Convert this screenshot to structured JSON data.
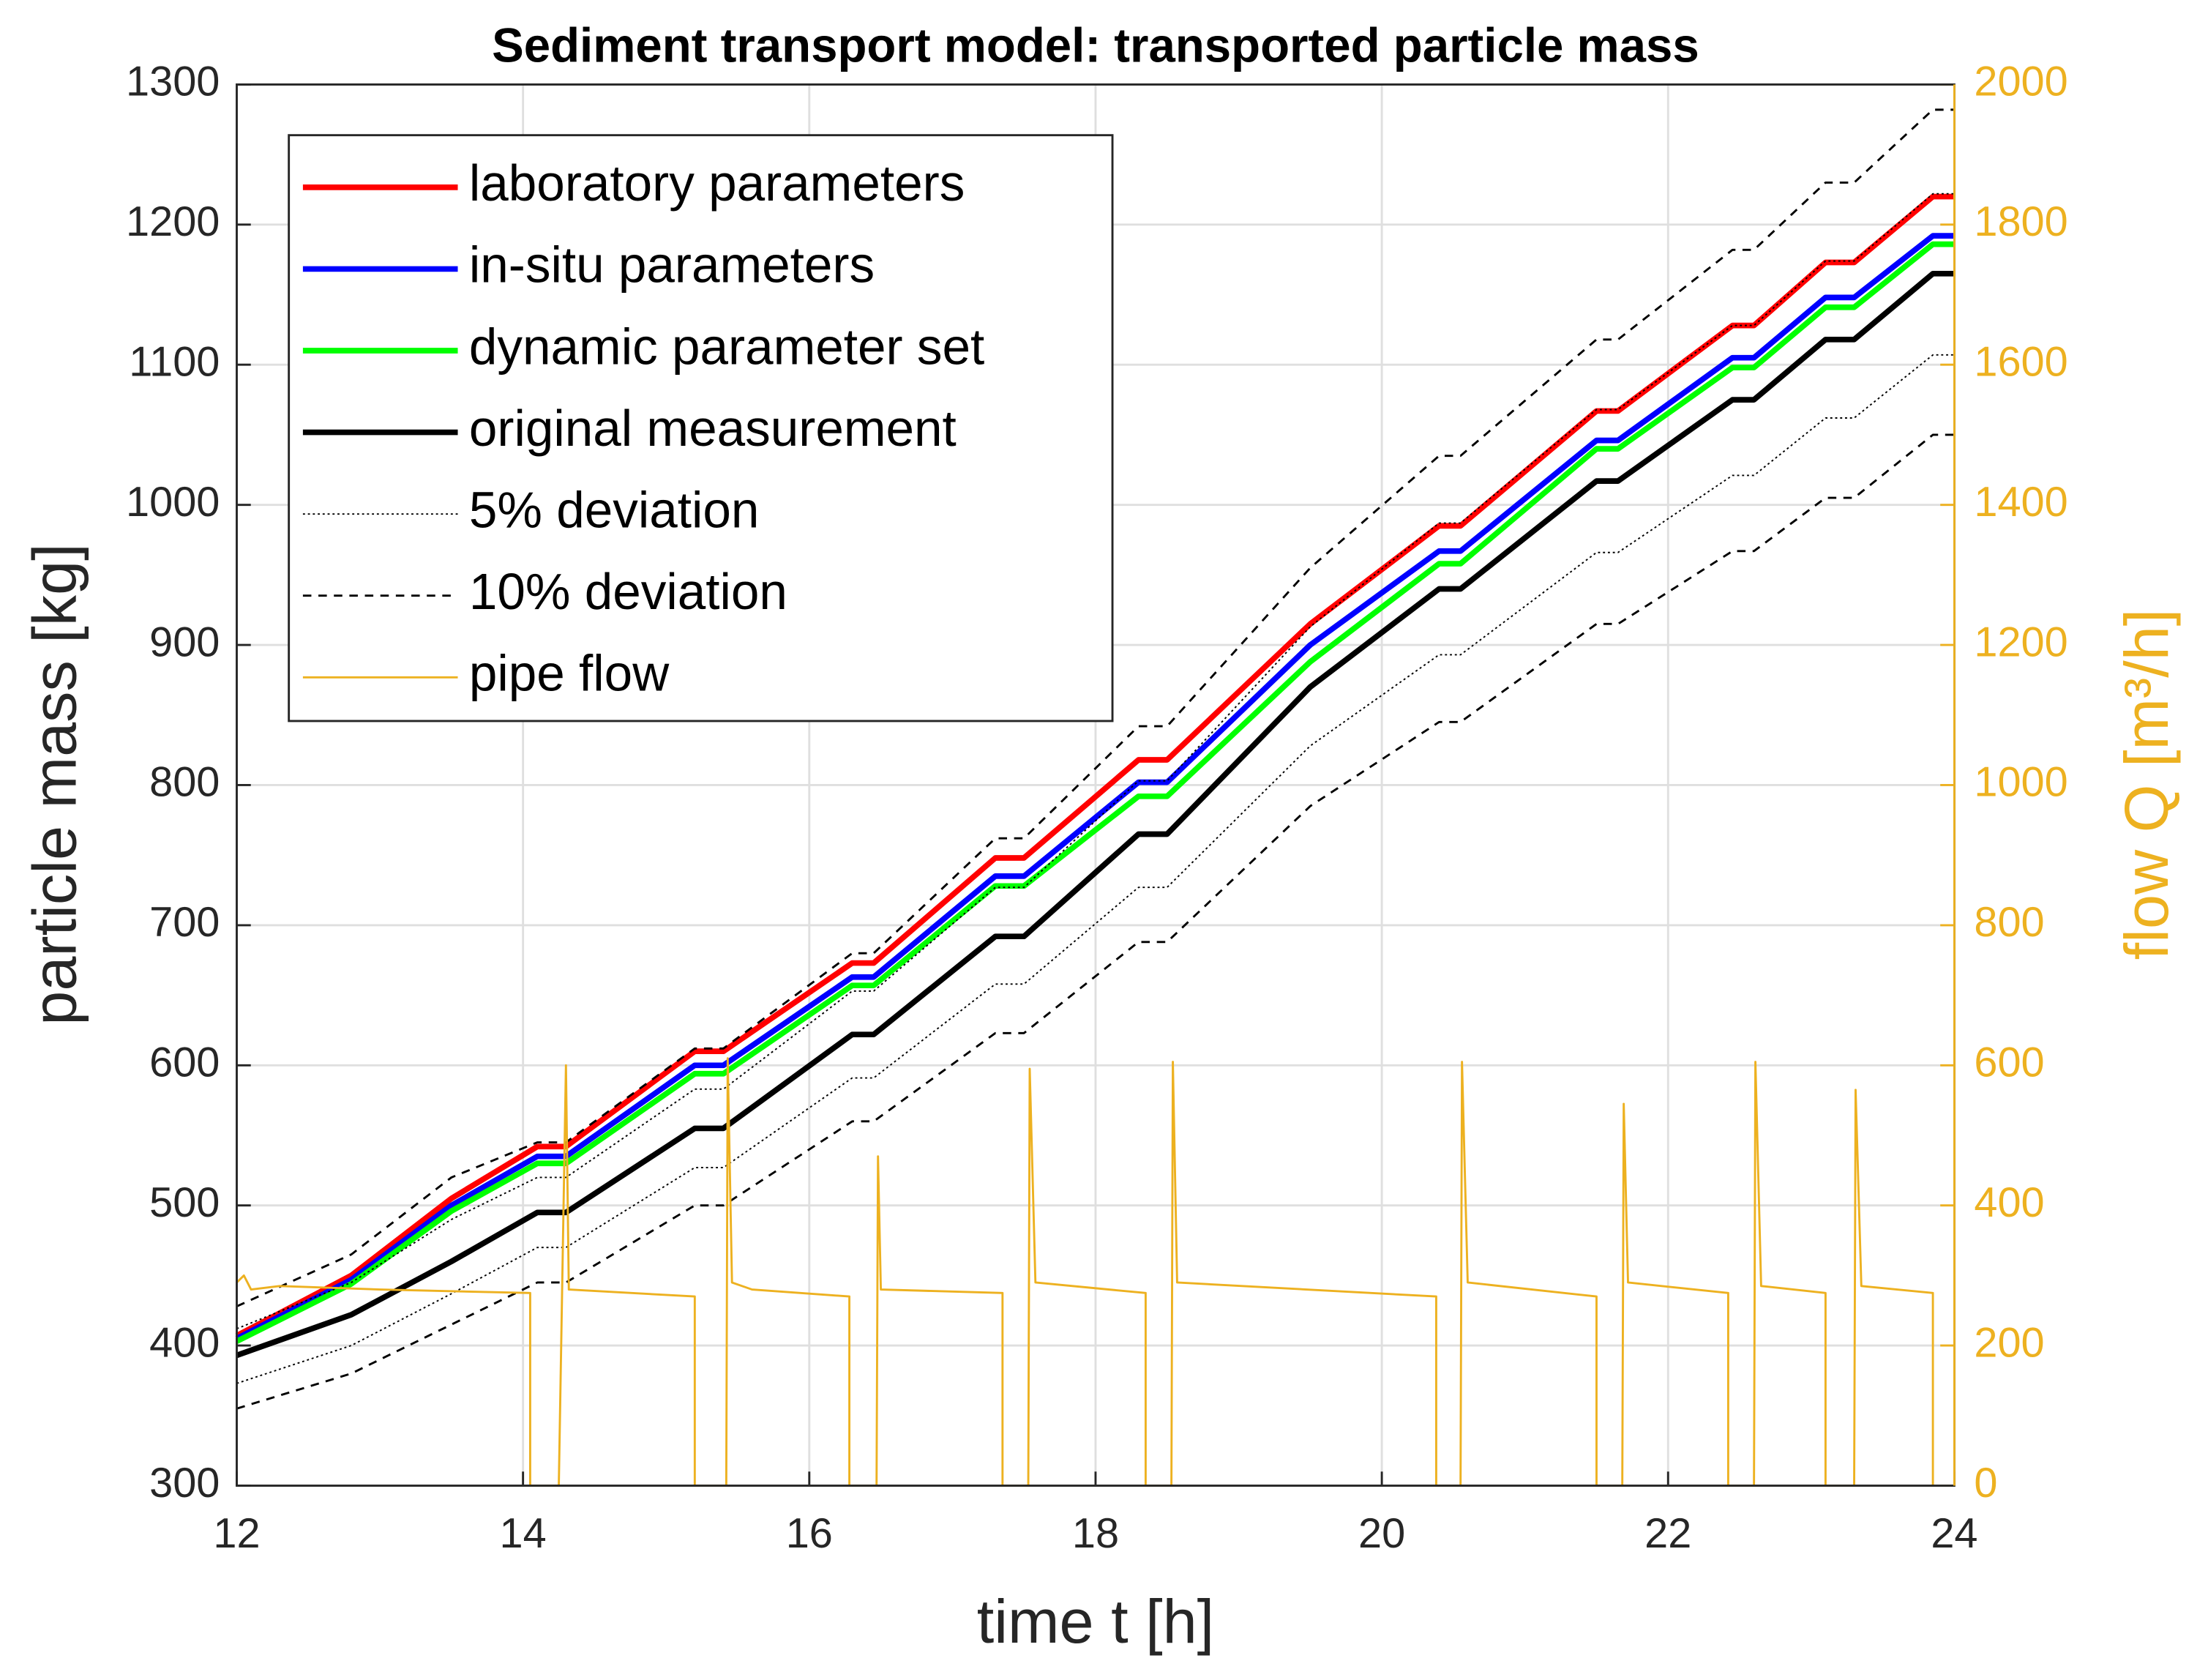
{
  "chart_data": {
    "type": "line",
    "title": "Sediment transport model: transported particle mass",
    "xlabel": "time t [h]",
    "ylabel": "particle mass [kg]",
    "y2label": "flow Q [m³/h]",
    "xlim": [
      12,
      24
    ],
    "xticks": [
      12,
      14,
      16,
      18,
      20,
      22,
      24
    ],
    "ylim": [
      300,
      1300
    ],
    "yticks": [
      300,
      400,
      500,
      600,
      700,
      800,
      900,
      1000,
      1100,
      1200,
      1300
    ],
    "y2lim": [
      0,
      2000
    ],
    "y2ticks": [
      0,
      200,
      400,
      600,
      800,
      1000,
      1200,
      1400,
      1600,
      1800,
      2000
    ],
    "y2color": "#edb120",
    "grid": true,
    "legend": "upper left",
    "x": [
      12,
      12.8,
      13.5,
      14.1,
      14.3,
      15.2,
      15.4,
      16.3,
      16.45,
      17.3,
      17.5,
      18.3,
      18.5,
      19.5,
      20.4,
      20.55,
      21.5,
      21.65,
      22.45,
      22.6,
      23.1,
      23.3,
      23.85,
      24
    ],
    "series": [
      {
        "name": "laboratory parameters",
        "color": "#ff0000",
        "style": "solid",
        "width": 4,
        "values": [
          407,
          450,
          505,
          542,
          542,
          610,
          610,
          673,
          673,
          748,
          748,
          818,
          818,
          915,
          985,
          985,
          1067,
          1067,
          1128,
          1128,
          1173,
          1173,
          1220,
          1220
        ]
      },
      {
        "name": "in-situ parameters",
        "color": "#0000ff",
        "style": "solid",
        "width": 4,
        "values": [
          405,
          447,
          500,
          535,
          535,
          600,
          600,
          663,
          663,
          735,
          735,
          802,
          802,
          900,
          967,
          967,
          1046,
          1046,
          1105,
          1105,
          1148,
          1148,
          1192,
          1192
        ]
      },
      {
        "name": "dynamic parameter set",
        "color": "#00ff00",
        "style": "solid",
        "width": 4,
        "values": [
          403,
          444,
          496,
          530,
          530,
          594,
          594,
          657,
          657,
          728,
          728,
          792,
          792,
          888,
          958,
          958,
          1040,
          1040,
          1098,
          1098,
          1141,
          1141,
          1186,
          1186
        ]
      },
      {
        "name": "original measurement",
        "color": "#000000",
        "style": "solid",
        "width": 4,
        "values": [
          393,
          422,
          460,
          495,
          495,
          555,
          555,
          622,
          622,
          692,
          692,
          765,
          765,
          870,
          940,
          940,
          1017,
          1017,
          1075,
          1075,
          1118,
          1118,
          1165,
          1165
        ]
      },
      {
        "name": "5% deviation",
        "color": "#000000",
        "style": "dotted",
        "width": 1,
        "upper": [
          412,
          445,
          490,
          520,
          520,
          583,
          583,
          653,
          653,
          727,
          727,
          803,
          803,
          913,
          987,
          987,
          1068,
          1068,
          1128,
          1128,
          1174,
          1174,
          1222,
          1222
        ],
        "lower": [
          373,
          400,
          437,
          470,
          470,
          527,
          527,
          591,
          591,
          658,
          658,
          727,
          727,
          828,
          893,
          893,
          966,
          966,
          1021,
          1021,
          1062,
          1062,
          1107,
          1107
        ]
      },
      {
        "name": "10% deviation",
        "color": "#000000",
        "style": "dashed",
        "width": 1.5,
        "upper": [
          428,
          465,
          520,
          545,
          545,
          612,
          612,
          680,
          680,
          762,
          762,
          842,
          842,
          955,
          1035,
          1035,
          1118,
          1118,
          1182,
          1182,
          1230,
          1230,
          1282,
          1282
        ],
        "lower": [
          355,
          380,
          415,
          445,
          445,
          500,
          500,
          560,
          560,
          623,
          623,
          688,
          688,
          785,
          845,
          845,
          915,
          915,
          967,
          967,
          1005,
          1005,
          1050,
          1050
        ]
      },
      {
        "name": "pipe flow",
        "color": "#edb120",
        "style": "solid",
        "width": 1.5,
        "axis": "y2",
        "x": [
          12,
          12.05,
          12.1,
          12.3,
          13,
          14.05,
          14.05,
          14.25,
          14.3,
          14.32,
          15.2,
          15.2,
          15.42,
          15.43,
          15.46,
          15.6,
          16.28,
          16.28,
          16.47,
          16.48,
          16.5,
          17.35,
          17.35,
          17.53,
          17.54,
          17.58,
          18.35,
          18.35,
          18.53,
          18.54,
          18.57,
          20.38,
          20.38,
          20.55,
          20.56,
          20.6,
          21.5,
          21.5,
          21.68,
          21.69,
          21.72,
          22.42,
          22.42,
          22.6,
          22.61,
          22.65,
          23.1,
          23.1,
          23.3,
          23.31,
          23.35,
          23.85,
          23.85
        ],
        "values": [
          290,
          300,
          280,
          285,
          280,
          275,
          0,
          0,
          600,
          280,
          270,
          0,
          0,
          610,
          290,
          280,
          270,
          0,
          0,
          470,
          280,
          275,
          0,
          0,
          595,
          290,
          275,
          0,
          0,
          605,
          290,
          270,
          0,
          0,
          605,
          290,
          270,
          0,
          0,
          545,
          290,
          275,
          0,
          0,
          605,
          285,
          275,
          0,
          0,
          565,
          285,
          275,
          0
        ]
      }
    ]
  }
}
